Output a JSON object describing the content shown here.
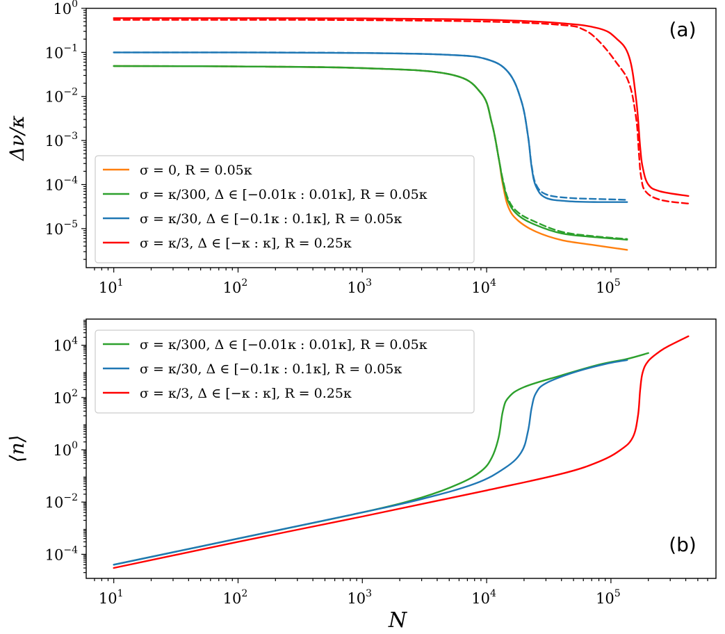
{
  "chart_data": [
    {
      "panel": "a",
      "type": "line",
      "panel_label": "(a)",
      "xlabel": "",
      "ylabel": "Δν/κ",
      "xscale": "log",
      "yscale": "log",
      "xlim": [
        6,
        700000
      ],
      "ylim": [
        1.3e-06,
        1.0
      ],
      "xticks": [
        {
          "value": 10,
          "base": "10",
          "exp": "1"
        },
        {
          "value": 100,
          "base": "10",
          "exp": "2"
        },
        {
          "value": 1000,
          "base": "10",
          "exp": "3"
        },
        {
          "value": 10000,
          "base": "10",
          "exp": "4"
        },
        {
          "value": 100000,
          "base": "10",
          "exp": "5"
        }
      ],
      "yticks": [
        {
          "value": 1e-05,
          "base": "10",
          "exp": "−5"
        },
        {
          "value": 0.0001,
          "base": "10",
          "exp": "−4"
        },
        {
          "value": 0.001,
          "base": "10",
          "exp": "−3"
        },
        {
          "value": 0.01,
          "base": "10",
          "exp": "−2"
        },
        {
          "value": 0.1,
          "base": "10",
          "exp": "−1"
        },
        {
          "value": 1,
          "base": "10",
          "exp": "0"
        }
      ],
      "legend_position": "lower-left",
      "series": [
        {
          "name": "σ = 0, R = 0.05κ",
          "color": "#ff7f0e",
          "style": "solid",
          "x": [
            10,
            100,
            1000,
            5000,
            9000,
            11000,
            12500,
            13500,
            15000,
            18000,
            25000,
            40000,
            70000,
            135000
          ],
          "y": [
            0.049,
            0.048,
            0.044,
            0.032,
            0.012,
            0.0025,
            0.0004,
            0.0001,
            3e-05,
            1.5e-05,
            8.5e-06,
            5.5e-06,
            4.3e-06,
            3.3e-06
          ]
        },
        {
          "name": "σ = κ/300, Δ ∈ [−0.01κ : 0.01κ], R = 0.05κ",
          "color": "#2ca02c",
          "style": "solid",
          "x": [
            10,
            100,
            1000,
            5000,
            9000,
            11000,
            12500,
            13500,
            15000,
            18000,
            25000,
            40000,
            70000,
            135000
          ],
          "y": [
            0.049,
            0.048,
            0.044,
            0.032,
            0.012,
            0.0025,
            0.0004,
            0.00012,
            4e-05,
            2e-05,
            1.2e-05,
            7.8e-06,
            6.5e-06,
            5.6e-06
          ]
        },
        {
          "name": "σ = κ/300 (dashed)",
          "color": "#2ca02c",
          "style": "dashed",
          "x": [
            10,
            100,
            1000,
            5000,
            9000,
            11000,
            12500,
            13500,
            15000,
            18000,
            25000,
            40000,
            70000,
            135000
          ],
          "y": [
            0.049,
            0.048,
            0.044,
            0.032,
            0.012,
            0.0025,
            0.0004,
            0.00013,
            4.5e-05,
            2.3e-05,
            1.4e-05,
            8.5e-06,
            6.8e-06,
            5.8e-06
          ]
        },
        {
          "name": "σ = κ/30, Δ ∈ [−0.1κ : 0.1κ], R = 0.05κ",
          "color": "#1f77b4",
          "style": "solid",
          "x": [
            10,
            100,
            1000,
            5000,
            10000,
            15000,
            19000,
            21500,
            23000,
            25000,
            30000,
            45000,
            80000,
            135000
          ],
          "y": [
            0.1,
            0.1,
            0.097,
            0.088,
            0.07,
            0.035,
            0.008,
            0.0013,
            0.00025,
            9e-05,
            5e-05,
            4.2e-05,
            4e-05,
            4e-05
          ]
        },
        {
          "name": "σ = κ/30 (dashed)",
          "color": "#1f77b4",
          "style": "dashed",
          "x": [
            10,
            100,
            1000,
            5000,
            10000,
            15000,
            19000,
            21500,
            23000,
            25000,
            30000,
            45000,
            80000,
            135000
          ],
          "y": [
            0.1,
            0.1,
            0.097,
            0.088,
            0.07,
            0.035,
            0.008,
            0.0013,
            0.00027,
            0.0001,
            6e-05,
            5e-05,
            4.7e-05,
            4.5e-05
          ]
        },
        {
          "name": "σ = κ/3, Δ ∈ [−κ : κ], R = 0.25κ",
          "color": "#ff0000",
          "style": "solid",
          "x": [
            10,
            100,
            1000,
            10000,
            40000,
            80000,
            110000,
            140000,
            160000,
            172000,
            180000,
            200000,
            250000,
            420000
          ],
          "y": [
            0.6,
            0.6,
            0.59,
            0.55,
            0.46,
            0.35,
            0.21,
            0.08,
            0.008,
            0.0007,
            0.00025,
            0.0001,
            7e-05,
            5.5e-05
          ]
        },
        {
          "name": "σ = κ/3 (dashed)",
          "color": "#ff0000",
          "style": "dashed",
          "x": [
            10,
            100,
            1000,
            10000,
            40000,
            60000,
            80000,
            110000,
            140000,
            160000,
            168000,
            175000,
            190000,
            250000,
            420000
          ],
          "y": [
            0.55,
            0.55,
            0.54,
            0.5,
            0.42,
            0.33,
            0.18,
            0.06,
            0.02,
            0.003,
            0.0005,
            0.00015,
            7e-05,
            4.5e-05,
            3.7e-05
          ]
        }
      ],
      "legend_entries": [
        {
          "label": "σ = 0, R = 0.05κ",
          "color": "#ff7f0e"
        },
        {
          "label": "σ = κ/300, Δ ∈ [−0.01κ : 0.01κ], R = 0.05κ",
          "color": "#2ca02c"
        },
        {
          "label": "σ = κ/30, Δ ∈ [−0.1κ : 0.1κ], R = 0.05κ",
          "color": "#1f77b4"
        },
        {
          "label": "σ = κ/3, Δ ∈ [−κ : κ], R = 0.25κ",
          "color": "#ff0000"
        }
      ]
    },
    {
      "panel": "b",
      "type": "line",
      "panel_label": "(b)",
      "xlabel": "N",
      "ylabel": "⟨n⟩",
      "xscale": "log",
      "yscale": "log",
      "xlim": [
        6,
        700000
      ],
      "ylim": [
        1.2e-05,
        100000
      ],
      "xticks": [
        {
          "value": 10,
          "base": "10",
          "exp": "1"
        },
        {
          "value": 100,
          "base": "10",
          "exp": "2"
        },
        {
          "value": 1000,
          "base": "10",
          "exp": "3"
        },
        {
          "value": 10000,
          "base": "10",
          "exp": "4"
        },
        {
          "value": 100000,
          "base": "10",
          "exp": "5"
        }
      ],
      "yticks": [
        {
          "value": 0.0001,
          "base": "10",
          "exp": "−4"
        },
        {
          "value": 0.01,
          "base": "10",
          "exp": "−2"
        },
        {
          "value": 1,
          "base": "10",
          "exp": "0"
        },
        {
          "value": 100,
          "base": "10",
          "exp": "2"
        },
        {
          "value": 10000,
          "base": "10",
          "exp": "4"
        }
      ],
      "legend_position": "upper-left",
      "series": [
        {
          "name": "σ = κ/300, Δ ∈ [−0.01κ : 0.01κ], R = 0.05κ",
          "color": "#2ca02c",
          "style": "solid",
          "x": [
            10,
            100,
            1000,
            3000,
            6000,
            9000,
            11000,
            12500,
            13500,
            15000,
            20000,
            40000,
            80000,
            135000,
            200000
          ],
          "y": [
            4e-05,
            0.0004,
            0.004,
            0.015,
            0.05,
            0.15,
            0.5,
            3,
            30,
            100,
            250,
            700,
            1800,
            3000,
            5000
          ]
        },
        {
          "name": "σ = κ/30, Δ ∈ [−0.1κ : 0.1κ], R = 0.05κ",
          "color": "#1f77b4",
          "style": "solid",
          "x": [
            10,
            100,
            1000,
            3000,
            8000,
            14000,
            19000,
            21500,
            23000,
            25000,
            30000,
            50000,
            90000,
            135000
          ],
          "y": [
            4e-05,
            0.0004,
            0.004,
            0.013,
            0.05,
            0.2,
            0.8,
            5,
            40,
            150,
            350,
            900,
            1900,
            2700
          ]
        },
        {
          "name": "σ = κ/3, Δ ∈ [−κ : κ], R = 0.25κ",
          "color": "#ff0000",
          "style": "solid",
          "x": [
            10,
            100,
            1000,
            10000,
            40000,
            80000,
            120000,
            150000,
            165000,
            172000,
            180000,
            200000,
            250000,
            300000,
            420000
          ],
          "y": [
            3e-05,
            0.0003,
            0.0028,
            0.028,
            0.12,
            0.35,
            1,
            3,
            20,
            200,
            900,
            2500,
            6000,
            10000,
            22000
          ]
        }
      ],
      "legend_entries": [
        {
          "label": "σ = κ/300, Δ ∈ [−0.01κ : 0.01κ], R = 0.05κ",
          "color": "#2ca02c"
        },
        {
          "label": "σ = κ/30, Δ ∈ [−0.1κ : 0.1κ], R = 0.05κ",
          "color": "#1f77b4"
        },
        {
          "label": "σ = κ/3, Δ ∈ [−κ : κ], R = 0.25κ",
          "color": "#ff0000"
        }
      ]
    }
  ]
}
